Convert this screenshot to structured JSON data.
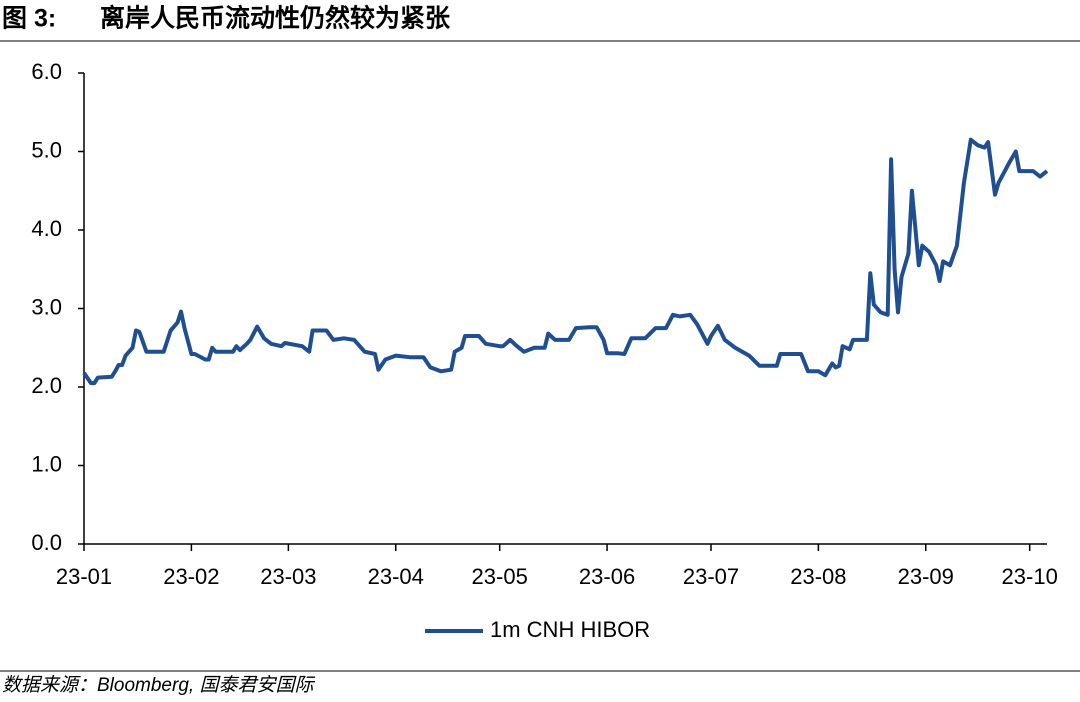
{
  "chart_data": {
    "type": "line",
    "figure_label": "图 3:",
    "title": "离岸人民币流动性仍然较为紧张",
    "source": "数据来源：Bloomberg, 国泰君安国际",
    "xlim": [
      0,
      278
    ],
    "xticks": [
      {
        "value": 0,
        "label": "23-01"
      },
      {
        "value": 31,
        "label": "23-02"
      },
      {
        "value": 59,
        "label": "23-03"
      },
      {
        "value": 90,
        "label": "23-04"
      },
      {
        "value": 120,
        "label": "23-05"
      },
      {
        "value": 151,
        "label": "23-06"
      },
      {
        "value": 181,
        "label": "23-07"
      },
      {
        "value": 212,
        "label": "23-08"
      },
      {
        "value": 243,
        "label": "23-09"
      },
      {
        "value": 273,
        "label": "23-10"
      }
    ],
    "ylim": [
      0,
      6
    ],
    "yticks": [
      {
        "value": 0,
        "label": "0.0"
      },
      {
        "value": 1,
        "label": "1.0"
      },
      {
        "value": 2,
        "label": "2.0"
      },
      {
        "value": 3,
        "label": "3.0"
      },
      {
        "value": 4,
        "label": "4.0"
      },
      {
        "value": 5,
        "label": "5.0"
      },
      {
        "value": 6,
        "label": "6.0"
      }
    ],
    "legend": "bottom",
    "series": [
      {
        "name": "1m CNH HIBOR",
        "color": "#1f4e91",
        "x": [
          0,
          2,
          3,
          4,
          8,
          9,
          10,
          11,
          12,
          14,
          15,
          16,
          18,
          19,
          23,
          25,
          27,
          28,
          29,
          31,
          32,
          35,
          36,
          37,
          38,
          43,
          44,
          45,
          47,
          48,
          50,
          52,
          54,
          57,
          58,
          63,
          65,
          66,
          70,
          72,
          75,
          78,
          81,
          84,
          85,
          87,
          90,
          94,
          98,
          100,
          103,
          106,
          107,
          109,
          110,
          114,
          116,
          120,
          121,
          123,
          125,
          127,
          130,
          133,
          134,
          136,
          140,
          142,
          146,
          148,
          150,
          151,
          154,
          156,
          158,
          162,
          165,
          168,
          170,
          172,
          175,
          177,
          180,
          181,
          183,
          185,
          188,
          192,
          195,
          200,
          201,
          207,
          209,
          212,
          214,
          216,
          217,
          218,
          219,
          221,
          222,
          226,
          227,
          228,
          230,
          232,
          233,
          234,
          235,
          236,
          238,
          239,
          241,
          242,
          244,
          246,
          247,
          248,
          250,
          252,
          254,
          256,
          258,
          260,
          261,
          263,
          264,
          267,
          269,
          270,
          274,
          276,
          278
        ],
        "values": [
          2.18,
          2.05,
          2.05,
          2.12,
          2.13,
          2.2,
          2.28,
          2.28,
          2.4,
          2.5,
          2.72,
          2.7,
          2.45,
          2.45,
          2.45,
          2.72,
          2.82,
          2.96,
          2.75,
          2.42,
          2.42,
          2.35,
          2.35,
          2.5,
          2.45,
          2.45,
          2.52,
          2.47,
          2.55,
          2.6,
          2.77,
          2.62,
          2.55,
          2.52,
          2.56,
          2.52,
          2.45,
          2.72,
          2.72,
          2.6,
          2.62,
          2.6,
          2.45,
          2.42,
          2.22,
          2.35,
          2.4,
          2.38,
          2.38,
          2.25,
          2.2,
          2.22,
          2.45,
          2.5,
          2.65,
          2.65,
          2.55,
          2.52,
          2.52,
          2.6,
          2.52,
          2.45,
          2.5,
          2.5,
          2.68,
          2.6,
          2.6,
          2.75,
          2.76,
          2.76,
          2.6,
          2.43,
          2.43,
          2.42,
          2.62,
          2.62,
          2.75,
          2.75,
          2.92,
          2.9,
          2.92,
          2.8,
          2.55,
          2.65,
          2.78,
          2.6,
          2.5,
          2.4,
          2.27,
          2.27,
          2.42,
          2.42,
          2.2,
          2.2,
          2.15,
          2.3,
          2.25,
          2.27,
          2.52,
          2.48,
          2.6,
          2.6,
          3.45,
          3.05,
          2.95,
          2.92,
          4.9,
          3.5,
          2.95,
          3.4,
          3.7,
          4.5,
          3.55,
          3.8,
          3.72,
          3.55,
          3.35,
          3.6,
          3.55,
          3.8,
          4.6,
          5.15,
          5.08,
          5.05,
          5.12,
          4.45,
          4.6,
          4.85,
          5.0,
          4.75,
          4.75,
          4.68,
          4.75
        ]
      }
    ]
  }
}
